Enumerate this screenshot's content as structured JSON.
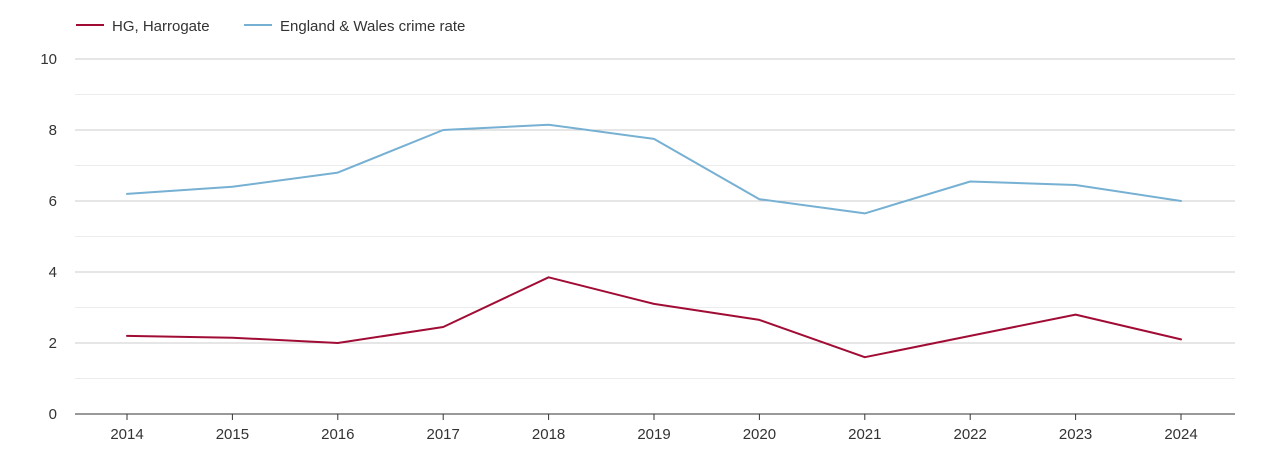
{
  "chart_data": {
    "type": "line",
    "title": "",
    "xlabel": "",
    "ylabel": "",
    "x": [
      "2014",
      "2015",
      "2016",
      "2017",
      "2018",
      "2019",
      "2020",
      "2021",
      "2022",
      "2023",
      "2024"
    ],
    "ylim": [
      0,
      10
    ],
    "yticks": [
      "0",
      "2",
      "4",
      "6",
      "8",
      "10"
    ],
    "grid": true,
    "legend_position": "top-left",
    "series": [
      {
        "name": "HG, Harrogate",
        "color": "#a10c35",
        "values": [
          2.2,
          2.15,
          2.0,
          2.45,
          3.85,
          3.1,
          2.65,
          1.6,
          2.2,
          2.8,
          2.1
        ]
      },
      {
        "name": "England & Wales crime rate",
        "color": "#76b0d3",
        "values": [
          6.2,
          6.4,
          6.8,
          8.0,
          8.15,
          7.75,
          6.05,
          5.65,
          6.55,
          6.45,
          6.0
        ]
      }
    ]
  }
}
